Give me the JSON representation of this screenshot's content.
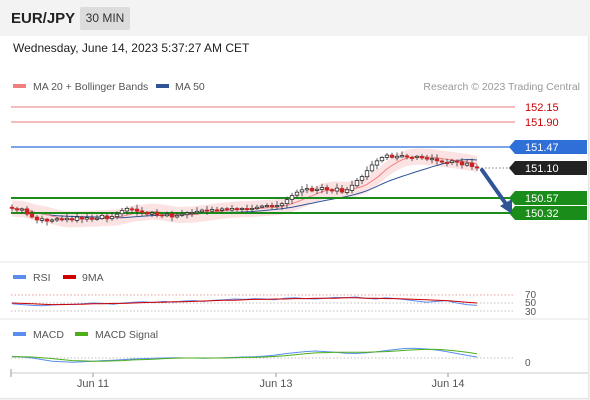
{
  "header": {
    "symbol": "EUR/JPY",
    "interval": "30 MIN",
    "timestamp": "Wednesday, June 14, 2023 5:37:27 AM CET"
  },
  "chart_data": [
    {
      "type": "candlestick",
      "legend": [
        {
          "name": "MA 20 + Bollinger Bands",
          "color": "#f08080"
        },
        {
          "name": "MA 50",
          "color": "#2f5597"
        }
      ],
      "credit": "Research © 2023 Trading Central",
      "y_range": [
        150.05,
        152.3
      ],
      "x_ticks": [
        "Jun 11",
        "Jun 13",
        "Jun 14"
      ],
      "levels": [
        {
          "label": "152.15",
          "value": 152.15,
          "kind": "resistance",
          "color": "#cc0000"
        },
        {
          "label": "151.90",
          "value": 151.9,
          "kind": "resistance",
          "color": "#cc0000"
        },
        {
          "label": "151.47",
          "value": 151.47,
          "kind": "pivot",
          "color": "#2e6fd8"
        },
        {
          "label": "151.10",
          "value": 151.1,
          "kind": "last",
          "color": "#222222"
        },
        {
          "label": "150.57",
          "value": 150.57,
          "kind": "support",
          "color": "#1a8c1a"
        },
        {
          "label": "150.32",
          "value": 150.32,
          "kind": "support",
          "color": "#1a8c1a"
        }
      ],
      "close_series": [
        150.4,
        150.38,
        150.39,
        150.3,
        150.25,
        150.2,
        150.22,
        150.18,
        150.2,
        150.22,
        150.21,
        150.23,
        150.2,
        150.25,
        150.22,
        150.24,
        150.21,
        150.23,
        150.28,
        150.22,
        150.26,
        150.3,
        150.36,
        150.4,
        150.38,
        150.35,
        150.33,
        150.3,
        150.32,
        150.28,
        150.27,
        150.3,
        150.25,
        150.28,
        150.3,
        150.32,
        150.33,
        150.35,
        150.37,
        150.36,
        150.38,
        150.37,
        150.39,
        150.38,
        150.4,
        150.39,
        150.4,
        150.38,
        150.4,
        150.42,
        150.44,
        150.45,
        150.43,
        150.45,
        150.48,
        150.55,
        150.62,
        150.68,
        150.72,
        150.74,
        150.7,
        150.73,
        150.76,
        150.72,
        150.7,
        150.75,
        150.68,
        150.72,
        150.8,
        150.88,
        150.95,
        151.05,
        151.15,
        151.22,
        151.28,
        151.32,
        151.28,
        151.3,
        151.31,
        151.29,
        151.28,
        151.3,
        151.27,
        151.25,
        151.26,
        151.22,
        151.2,
        151.18,
        151.22,
        151.2,
        151.15,
        151.18,
        151.12,
        151.1
      ],
      "forecast": "bearish arrow toward 150.32"
    },
    {
      "type": "line",
      "name": "RSI",
      "legend": [
        {
          "name": "RSI",
          "color": "#5b8def"
        },
        {
          "name": "9MA",
          "color": "#cc0000"
        }
      ],
      "y_ticks": [
        "70",
        "50",
        "30"
      ],
      "y_range": [
        0,
        100
      ],
      "rsi": [
        48,
        46,
        44,
        43,
        45,
        47,
        46,
        48,
        50,
        49,
        47,
        50,
        52,
        53,
        51,
        54,
        52,
        55,
        56,
        54,
        57,
        58,
        60,
        59,
        61,
        60,
        58,
        62,
        63,
        61,
        60,
        62,
        64,
        63,
        65,
        62,
        60,
        63,
        61,
        58,
        55,
        52,
        54,
        56,
        50,
        46,
        44
      ],
      "rsi_9ma": [
        50,
        49,
        48,
        47,
        46,
        46,
        47,
        47,
        48,
        48,
        49,
        49,
        50,
        51,
        52,
        52,
        53,
        53,
        54,
        55,
        56,
        57,
        57,
        58,
        59,
        59,
        60,
        60,
        61,
        61,
        62,
        62,
        62,
        63,
        63,
        62,
        62,
        61,
        61,
        60,
        59,
        58,
        57,
        56,
        54,
        52,
        50
      ]
    },
    {
      "type": "line",
      "name": "MACD",
      "legend": [
        {
          "name": "MACD",
          "color": "#5b8def"
        },
        {
          "name": "MACD Signal",
          "color": "#4caf1a"
        }
      ],
      "y_ticks": [
        "0"
      ],
      "macd": [
        0.05,
        0.03,
        0.0,
        -0.05,
        -0.1,
        -0.12,
        -0.13,
        -0.12,
        -0.1,
        -0.08,
        -0.07,
        -0.05,
        -0.03,
        -0.02,
        -0.01,
        0.0,
        0.01,
        0.0,
        0.0,
        -0.01,
        0.0,
        0.01,
        0.02,
        0.03,
        0.04,
        0.06,
        0.09,
        0.13,
        0.17,
        0.2,
        0.22,
        0.2,
        0.18,
        0.15,
        0.14,
        0.16,
        0.19,
        0.23,
        0.27,
        0.3,
        0.3,
        0.28,
        0.25,
        0.2,
        0.14,
        0.08,
        0.03
      ],
      "signal": [
        0.04,
        0.04,
        0.03,
        0.01,
        -0.02,
        -0.05,
        -0.08,
        -0.09,
        -0.1,
        -0.1,
        -0.09,
        -0.08,
        -0.06,
        -0.05,
        -0.04,
        -0.02,
        -0.01,
        0.0,
        0.0,
        0.0,
        0.0,
        0.0,
        0.01,
        0.02,
        0.02,
        0.03,
        0.05,
        0.07,
        0.1,
        0.13,
        0.16,
        0.17,
        0.18,
        0.18,
        0.18,
        0.18,
        0.19,
        0.2,
        0.22,
        0.24,
        0.26,
        0.27,
        0.27,
        0.25,
        0.22,
        0.18,
        0.13
      ]
    }
  ]
}
